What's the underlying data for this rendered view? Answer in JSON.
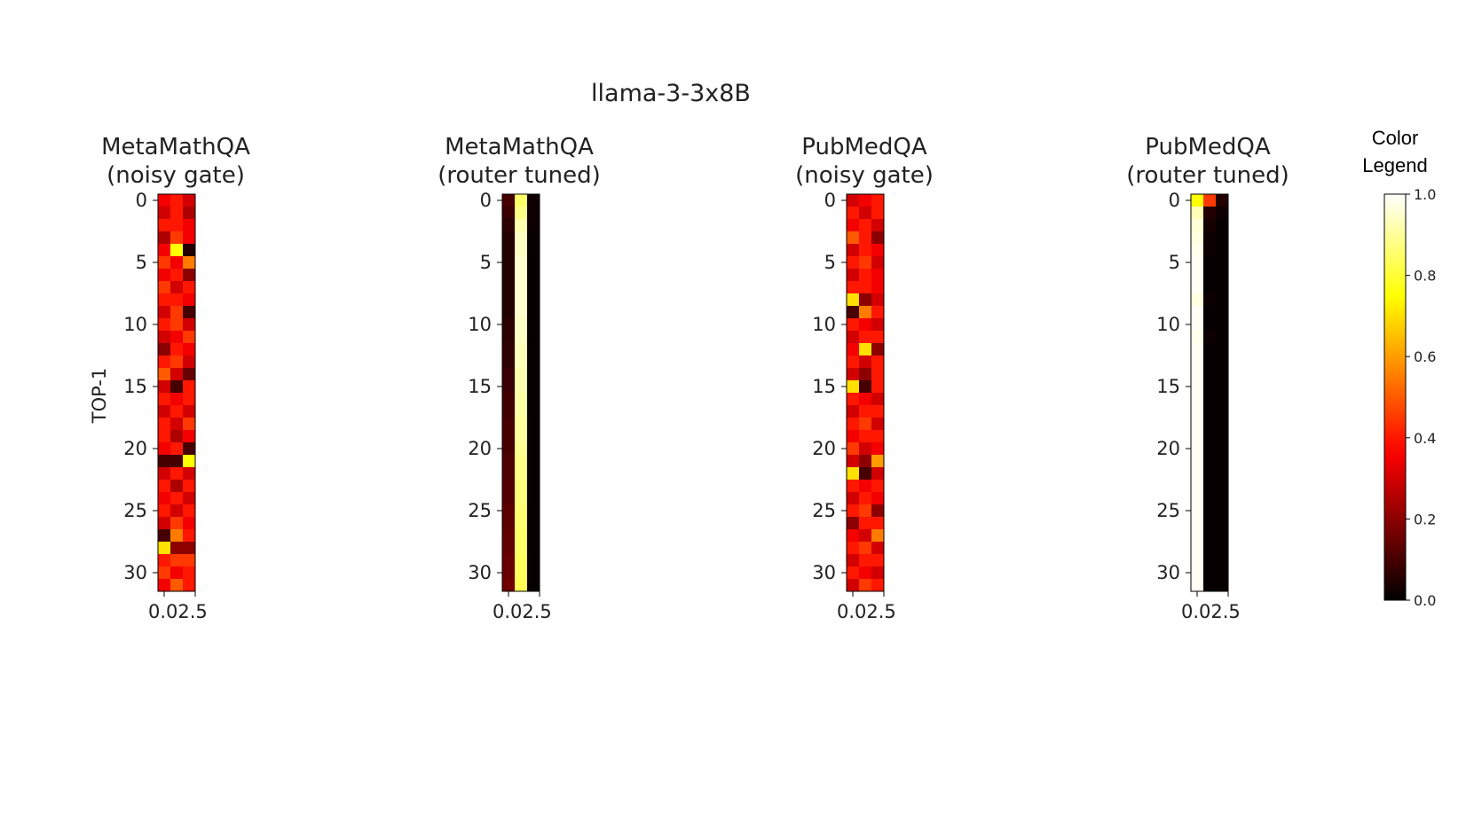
{
  "figure": {
    "suptitle": "llama-3-3x8B",
    "ylabel": "TOP-1"
  },
  "colorbar": {
    "title_line1": "Color",
    "title_line2": "Legend",
    "ticks": [
      0.0,
      0.2,
      0.4,
      0.6,
      0.8,
      1.0
    ],
    "tick_labels": [
      "0.0",
      "0.2",
      "0.4",
      "0.6",
      "0.8",
      "1.0"
    ],
    "colormap": "hot",
    "range": [
      0.0,
      1.0
    ]
  },
  "chart_data": [
    {
      "type": "heatmap",
      "title_line1": "MetaMathQA",
      "title_line2": "(noisy gate)",
      "y_ticks": [
        0,
        5,
        10,
        15,
        20,
        25,
        30
      ],
      "x_tick_label": "0.02.5",
      "colormap": "hot",
      "vmin": 0,
      "vmax": 1,
      "values": [
        [
          0.35,
          0.4,
          0.3
        ],
        [
          0.3,
          0.4,
          0.25
        ],
        [
          0.4,
          0.4,
          0.35
        ],
        [
          0.25,
          0.45,
          0.35
        ],
        [
          0.35,
          0.75,
          0.05
        ],
        [
          0.45,
          0.35,
          0.55
        ],
        [
          0.35,
          0.4,
          0.2
        ],
        [
          0.45,
          0.3,
          0.4
        ],
        [
          0.4,
          0.4,
          0.35
        ],
        [
          0.3,
          0.45,
          0.1
        ],
        [
          0.4,
          0.45,
          0.3
        ],
        [
          0.3,
          0.35,
          0.45
        ],
        [
          0.2,
          0.4,
          0.35
        ],
        [
          0.4,
          0.45,
          0.3
        ],
        [
          0.5,
          0.3,
          0.15
        ],
        [
          0.3,
          0.1,
          0.4
        ],
        [
          0.4,
          0.35,
          0.4
        ],
        [
          0.3,
          0.4,
          0.3
        ],
        [
          0.4,
          0.3,
          0.45
        ],
        [
          0.4,
          0.25,
          0.35
        ],
        [
          0.35,
          0.4,
          0.1
        ],
        [
          0.1,
          0.1,
          0.75
        ],
        [
          0.3,
          0.4,
          0.3
        ],
        [
          0.4,
          0.25,
          0.4
        ],
        [
          0.35,
          0.4,
          0.3
        ],
        [
          0.4,
          0.3,
          0.4
        ],
        [
          0.3,
          0.45,
          0.35
        ],
        [
          0.1,
          0.55,
          0.4
        ],
        [
          0.7,
          0.2,
          0.2
        ],
        [
          0.4,
          0.45,
          0.45
        ],
        [
          0.45,
          0.35,
          0.4
        ],
        [
          0.35,
          0.5,
          0.4
        ]
      ]
    },
    {
      "type": "heatmap",
      "title_line1": "MetaMathQA",
      "title_line2": "(router tuned)",
      "y_ticks": [
        0,
        5,
        10,
        15,
        20,
        25,
        30
      ],
      "x_tick_label": "0.02.5",
      "colormap": "hot",
      "vmin": 0,
      "vmax": 1,
      "values": [
        [
          0.1,
          0.85,
          0.02
        ],
        [
          0.08,
          0.88,
          0.02
        ],
        [
          0.06,
          0.92,
          0.02
        ],
        [
          0.05,
          0.94,
          0.01
        ],
        [
          0.05,
          0.94,
          0.01
        ],
        [
          0.05,
          0.95,
          0.01
        ],
        [
          0.05,
          0.95,
          0.01
        ],
        [
          0.05,
          0.95,
          0.01
        ],
        [
          0.05,
          0.95,
          0.01
        ],
        [
          0.05,
          0.95,
          0.01
        ],
        [
          0.06,
          0.94,
          0.01
        ],
        [
          0.06,
          0.94,
          0.01
        ],
        [
          0.07,
          0.93,
          0.01
        ],
        [
          0.07,
          0.93,
          0.01
        ],
        [
          0.08,
          0.92,
          0.01
        ],
        [
          0.08,
          0.92,
          0.01
        ],
        [
          0.09,
          0.91,
          0.01
        ],
        [
          0.09,
          0.91,
          0.01
        ],
        [
          0.1,
          0.9,
          0.01
        ],
        [
          0.1,
          0.9,
          0.01
        ],
        [
          0.1,
          0.89,
          0.01
        ],
        [
          0.11,
          0.88,
          0.01
        ],
        [
          0.11,
          0.88,
          0.01
        ],
        [
          0.12,
          0.87,
          0.01
        ],
        [
          0.12,
          0.87,
          0.01
        ],
        [
          0.13,
          0.86,
          0.01
        ],
        [
          0.13,
          0.86,
          0.01
        ],
        [
          0.14,
          0.85,
          0.01
        ],
        [
          0.14,
          0.85,
          0.01
        ],
        [
          0.15,
          0.84,
          0.01
        ],
        [
          0.15,
          0.84,
          0.01
        ],
        [
          0.16,
          0.83,
          0.01
        ]
      ]
    },
    {
      "type": "heatmap",
      "title_line1": "PubMedQA",
      "title_line2": "(noisy gate)",
      "y_ticks": [
        0,
        5,
        10,
        15,
        20,
        25,
        30
      ],
      "x_tick_label": "0.02.5",
      "colormap": "hot",
      "vmin": 0,
      "vmax": 1,
      "values": [
        [
          0.3,
          0.35,
          0.4
        ],
        [
          0.4,
          0.3,
          0.4
        ],
        [
          0.35,
          0.4,
          0.3
        ],
        [
          0.5,
          0.4,
          0.2
        ],
        [
          0.3,
          0.4,
          0.35
        ],
        [
          0.4,
          0.45,
          0.3
        ],
        [
          0.3,
          0.4,
          0.35
        ],
        [
          0.4,
          0.4,
          0.35
        ],
        [
          0.7,
          0.2,
          0.3
        ],
        [
          0.1,
          0.55,
          0.4
        ],
        [
          0.4,
          0.35,
          0.3
        ],
        [
          0.3,
          0.4,
          0.4
        ],
        [
          0.35,
          0.7,
          0.2
        ],
        [
          0.4,
          0.3,
          0.4
        ],
        [
          0.3,
          0.2,
          0.4
        ],
        [
          0.7,
          0.1,
          0.4
        ],
        [
          0.4,
          0.35,
          0.3
        ],
        [
          0.3,
          0.4,
          0.4
        ],
        [
          0.4,
          0.45,
          0.3
        ],
        [
          0.35,
          0.4,
          0.4
        ],
        [
          0.45,
          0.3,
          0.35
        ],
        [
          0.3,
          0.2,
          0.6
        ],
        [
          0.7,
          0.1,
          0.3
        ],
        [
          0.4,
          0.35,
          0.4
        ],
        [
          0.3,
          0.4,
          0.35
        ],
        [
          0.4,
          0.45,
          0.2
        ],
        [
          0.2,
          0.4,
          0.4
        ],
        [
          0.35,
          0.3,
          0.55
        ],
        [
          0.4,
          0.45,
          0.3
        ],
        [
          0.3,
          0.4,
          0.4
        ],
        [
          0.4,
          0.35,
          0.3
        ],
        [
          0.3,
          0.45,
          0.4
        ]
      ]
    },
    {
      "type": "heatmap",
      "title_line1": "PubMedQA",
      "title_line2": "(router tuned)",
      "y_ticks": [
        0,
        5,
        10,
        15,
        20,
        25,
        30
      ],
      "x_tick_label": "0.02.5",
      "colormap": "hot",
      "vmin": 0,
      "vmax": 1,
      "values": [
        [
          0.75,
          0.45,
          0.05
        ],
        [
          0.93,
          0.05,
          0.02
        ],
        [
          0.96,
          0.03,
          0.01
        ],
        [
          0.97,
          0.02,
          0.01
        ],
        [
          0.98,
          0.02,
          0.01
        ],
        [
          0.99,
          0.01,
          0.01
        ],
        [
          0.99,
          0.01,
          0.01
        ],
        [
          0.99,
          0.01,
          0.01
        ],
        [
          0.97,
          0.02,
          0.01
        ],
        [
          0.99,
          0.01,
          0.01
        ],
        [
          0.99,
          0.01,
          0.01
        ],
        [
          0.98,
          0.02,
          0.01
        ],
        [
          0.99,
          0.01,
          0.01
        ],
        [
          0.99,
          0.01,
          0.01
        ],
        [
          0.99,
          0.01,
          0.01
        ],
        [
          0.99,
          0.01,
          0.01
        ],
        [
          0.99,
          0.01,
          0.01
        ],
        [
          0.99,
          0.01,
          0.01
        ],
        [
          0.99,
          0.01,
          0.01
        ],
        [
          0.99,
          0.01,
          0.01
        ],
        [
          0.99,
          0.01,
          0.01
        ],
        [
          0.99,
          0.01,
          0.01
        ],
        [
          0.99,
          0.01,
          0.01
        ],
        [
          0.99,
          0.01,
          0.01
        ],
        [
          0.99,
          0.01,
          0.01
        ],
        [
          0.99,
          0.01,
          0.01
        ],
        [
          0.99,
          0.01,
          0.01
        ],
        [
          0.99,
          0.01,
          0.01
        ],
        [
          0.99,
          0.01,
          0.01
        ],
        [
          0.99,
          0.01,
          0.01
        ],
        [
          0.99,
          0.01,
          0.01
        ],
        [
          0.99,
          0.01,
          0.01
        ]
      ]
    }
  ]
}
